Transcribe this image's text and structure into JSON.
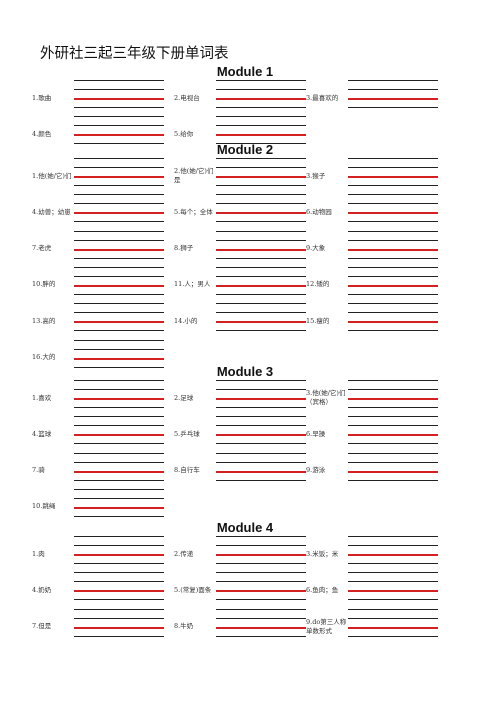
{
  "title": "外研社三起三年级下册单词表",
  "modules": [
    {
      "name": "Module 1",
      "items": [
        "1.歌曲",
        "2.电视台",
        "3.最喜欢的",
        "4.颜色",
        "5.给你"
      ]
    },
    {
      "name": "Module 2",
      "items": [
        "1.他(她/它)们",
        "2.他(她/它)们是",
        "3.猴子",
        "4.幼兽；幼崽",
        "5.每个；全体",
        "6.动物园",
        "7.老虎",
        "8.狮子",
        "9.大象",
        "10.胖的",
        "11.人；男人",
        "12.矮的",
        "13.高的",
        "14.小的",
        "15.瘦的",
        "16.大的"
      ]
    },
    {
      "name": "Module 3",
      "items": [
        "1.喜欢",
        "2.足球",
        "3.他(她/它)们（宾格）",
        "4.篮球",
        "5.乒乓球",
        "6.早操",
        "7.骑",
        "8.自行车",
        "9.游泳",
        "10.跳绳"
      ]
    },
    {
      "name": "Module 4",
      "items": [
        "1.肉",
        "2.传递",
        "3.米饭；米",
        "4.奶奶",
        "5.(常复)面条",
        "6.鱼肉；鱼",
        "7.但是",
        "8.牛奶",
        "9.do第三人称单数形式"
      ]
    }
  ]
}
